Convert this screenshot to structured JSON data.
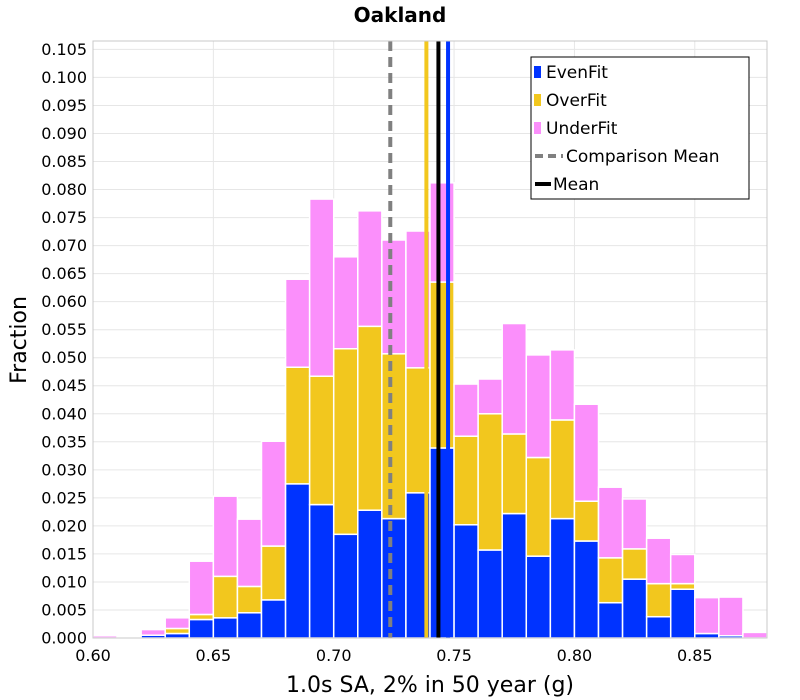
{
  "chart_data": {
    "type": "bar",
    "stacked": true,
    "title": "Oakland",
    "xlabel": "1.0s SA, 2% in 50 year (g)",
    "ylabel": "Fraction",
    "xlim": [
      0.6,
      0.88
    ],
    "ylim": [
      0,
      0.1065
    ],
    "bin_width": 0.01,
    "grid": true,
    "legend_position": "top-right",
    "x_ticks": [
      "0.60",
      "0.65",
      "0.70",
      "0.75",
      "0.80",
      "0.85"
    ],
    "x_tick_values": [
      0.6,
      0.65,
      0.7,
      0.75,
      0.8,
      0.85
    ],
    "y_ticks": [
      "0.000",
      "0.005",
      "0.010",
      "0.015",
      "0.020",
      "0.025",
      "0.030",
      "0.035",
      "0.040",
      "0.045",
      "0.050",
      "0.055",
      "0.060",
      "0.065",
      "0.070",
      "0.075",
      "0.080",
      "0.085",
      "0.090",
      "0.095",
      "0.100",
      "0.105"
    ],
    "y_tick_values": [
      0,
      0.005,
      0.01,
      0.015,
      0.02,
      0.025,
      0.03,
      0.035,
      0.04,
      0.045,
      0.05,
      0.055,
      0.06,
      0.065,
      0.07,
      0.075,
      0.08,
      0.085,
      0.09,
      0.095,
      0.1,
      0.105
    ],
    "bin_starts": [
      0.6,
      0.61,
      0.62,
      0.63,
      0.64,
      0.65,
      0.66,
      0.67,
      0.68,
      0.69,
      0.7,
      0.71,
      0.72,
      0.73,
      0.74,
      0.75,
      0.76,
      0.77,
      0.78,
      0.79,
      0.8,
      0.81,
      0.82,
      0.83,
      0.84,
      0.85,
      0.86,
      0.87
    ],
    "series": [
      {
        "name": "EvenFit",
        "color": "#0033ff",
        "values": [
          0,
          0,
          0.0005,
          0.0008,
          0.0033,
          0.0036,
          0.0045,
          0.0068,
          0.0275,
          0.0238,
          0.0185,
          0.0228,
          0.0213,
          0.0259,
          0.0339,
          0.0202,
          0.0157,
          0.0222,
          0.0146,
          0.0213,
          0.0173,
          0.0063,
          0.0105,
          0.0038,
          0.0087,
          0.0008,
          0.0004,
          0
        ]
      },
      {
        "name": "OverFit",
        "color": "#f2c71e",
        "values": [
          0,
          0,
          0,
          0.0009,
          0.0009,
          0.0074,
          0.0047,
          0.0096,
          0.0208,
          0.0229,
          0.0331,
          0.0328,
          0.0294,
          0.0223,
          0.0296,
          0.0158,
          0.0243,
          0.0142,
          0.0176,
          0.0176,
          0.0071,
          0.008,
          0.0054,
          0.0059,
          0.001,
          0,
          0,
          0
        ]
      },
      {
        "name": "UnderFit",
        "color": "#fb8ffb",
        "values": [
          0.0004,
          0.0001,
          0.001,
          0.0019,
          0.0095,
          0.0143,
          0.012,
          0.0187,
          0.0157,
          0.0316,
          0.0164,
          0.0206,
          0.0203,
          0.0244,
          0.0177,
          0.0093,
          0.0062,
          0.0197,
          0.0183,
          0.0125,
          0.0173,
          0.0126,
          0.0089,
          0.0081,
          0.0052,
          0.0064,
          0.0069,
          0.001
        ]
      }
    ],
    "reference_lines": [
      {
        "name": "Comparison Mean",
        "x": 0.7235,
        "color": "#808080",
        "style": "dashed"
      },
      {
        "name": "Mean",
        "x": 0.7435,
        "color": "#000000",
        "style": "solid"
      },
      {
        "name": "OverFit mean",
        "x": 0.7385,
        "color": "#f2c71e",
        "style": "solid"
      },
      {
        "name": "EvenFit mean",
        "x": 0.7475,
        "color": "#0033ff",
        "style": "solid"
      }
    ],
    "legend": [
      {
        "label": "EvenFit",
        "kind": "swatch",
        "color": "#0033ff"
      },
      {
        "label": "OverFit",
        "kind": "swatch",
        "color": "#f2c71e"
      },
      {
        "label": "UnderFit",
        "kind": "swatch",
        "color": "#fb8ffb"
      },
      {
        "label": "Comparison Mean",
        "kind": "dashed-line",
        "color": "#808080"
      },
      {
        "label": "Mean",
        "kind": "solid-line",
        "color": "#000000"
      }
    ]
  }
}
